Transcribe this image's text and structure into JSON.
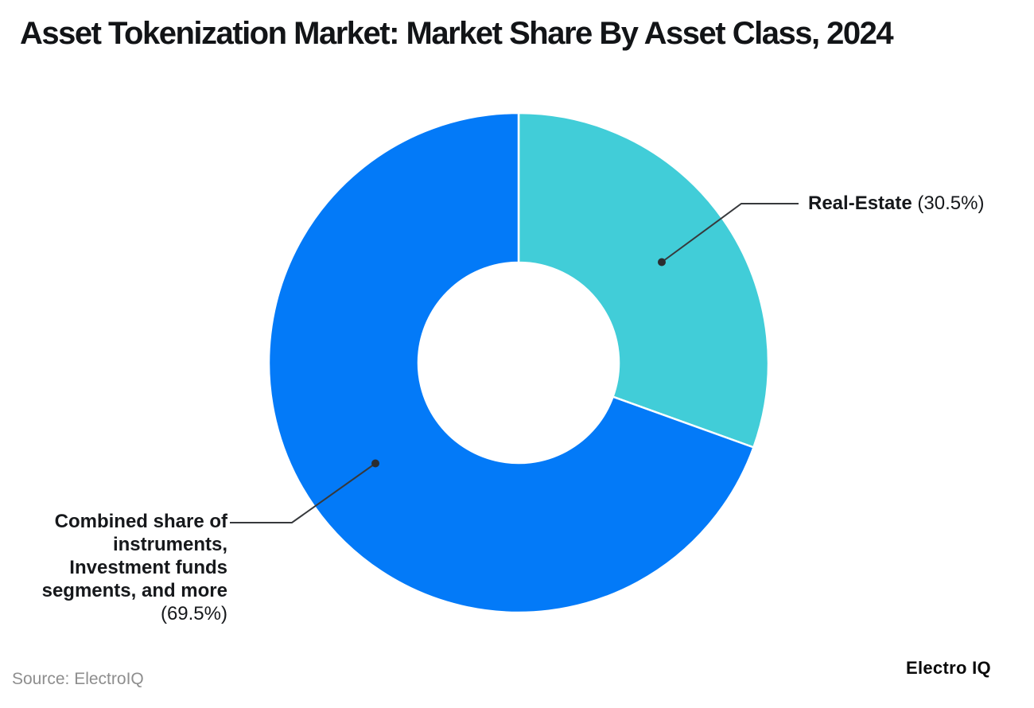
{
  "title": "Asset Tokenization Market: Market Share By Asset Class, 2024",
  "source_note": "Source: ElectroIQ",
  "brand": "Electro IQ",
  "colors": {
    "real_estate": "#41CDD8",
    "combined": "#037AF8",
    "leader_line": "#37393c",
    "leader_dot": "#2b2d30",
    "background": "#ffffff"
  },
  "chart_data": {
    "type": "pie",
    "subtype": "donut",
    "title": "Asset Tokenization Market: Market Share By Asset Class, 2024",
    "start_angle_deg": 0,
    "direction": "clockwise",
    "inner_radius_ratio": 0.4,
    "legend_position": "callouts",
    "slices": [
      {
        "label": "Real-Estate",
        "value": 30.5,
        "color": "#41CDD8"
      },
      {
        "label": "Combined share of instruments, Investment funds segments, and more",
        "value": 69.5,
        "color": "#037AF8"
      }
    ]
  },
  "callouts": [
    {
      "label_lines": [
        "Real-Estate"
      ],
      "percent": "(30.5%)"
    },
    {
      "label_lines": [
        "Combined share of",
        "instruments,",
        "Investment funds",
        "segments, and more"
      ],
      "percent": "(69.5%)"
    }
  ]
}
